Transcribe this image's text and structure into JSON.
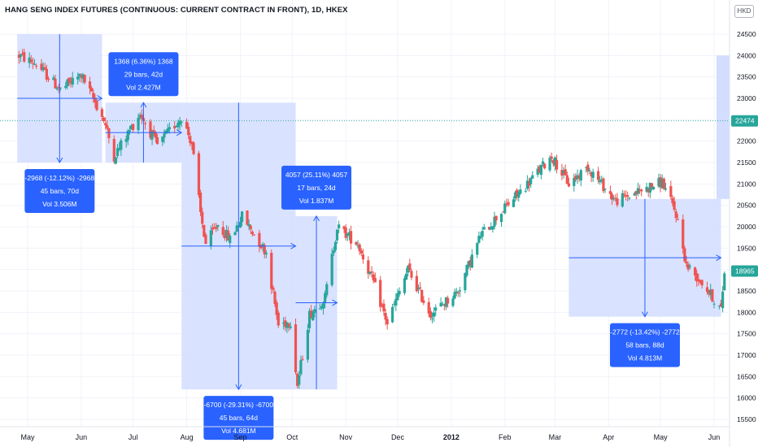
{
  "title": "HANG SENG INDEX FUTURES (CONTINUOUS: CURRENT CONTRACT IN FRONT), 1D, HKEX",
  "currency": "HKD",
  "colors": {
    "up": "#26a69a",
    "down": "#ef5350",
    "range": "#2962ff",
    "range_fill": "#d2ddff",
    "label_bg": "#2962ff",
    "price_line": "#26a69a"
  },
  "price_marks": [
    {
      "value": 22474,
      "label": "22474",
      "color": "#26a69a"
    },
    {
      "value": 18965,
      "label": "18965",
      "color": "#26a69a"
    }
  ],
  "chart_data": {
    "type": "candlestick",
    "title": "HANG SENG INDEX FUTURES (CONTINUOUS: CURRENT CONTRACT IN FRONT), 1D, HKEX",
    "x_tick_labels": [
      "May",
      "Jun",
      "Jul",
      "Aug",
      "Sep",
      "Oct",
      "Nov",
      "Dec",
      "2012",
      "Feb",
      "Mar",
      "Apr",
      "May",
      "Jun"
    ],
    "y_ticks": [
      15500,
      16000,
      16500,
      17000,
      17500,
      18000,
      18500,
      19000,
      19500,
      20000,
      20500,
      21000,
      21500,
      22000,
      22500,
      23000,
      23500,
      24000,
      24500
    ],
    "ylim": [
      15300,
      24850
    ],
    "anchors": [
      {
        "date": "2011-04-26",
        "price": 24000
      },
      {
        "date": "2011-05-06",
        "price": 23800
      },
      {
        "date": "2011-05-20",
        "price": 23200
      },
      {
        "date": "2011-06-01",
        "price": 23550
      },
      {
        "date": "2011-06-14",
        "price": 22500
      },
      {
        "date": "2011-06-20",
        "price": 21650
      },
      {
        "date": "2011-07-05",
        "price": 22650
      },
      {
        "date": "2011-07-15",
        "price": 21900
      },
      {
        "date": "2011-07-29",
        "price": 22570
      },
      {
        "date": "2011-08-04",
        "price": 21950
      },
      {
        "date": "2011-08-09",
        "price": 20300
      },
      {
        "date": "2011-08-12",
        "price": 19600
      },
      {
        "date": "2011-08-19",
        "price": 20050
      },
      {
        "date": "2011-08-26",
        "price": 19700
      },
      {
        "date": "2011-09-02",
        "price": 20250
      },
      {
        "date": "2011-09-16",
        "price": 19400
      },
      {
        "date": "2011-09-23",
        "price": 17700
      },
      {
        "date": "2011-09-30",
        "price": 17800
      },
      {
        "date": "2011-10-04",
        "price": 16300
      },
      {
        "date": "2011-10-11",
        "price": 17950
      },
      {
        "date": "2011-10-20",
        "price": 18350
      },
      {
        "date": "2011-10-27",
        "price": 20000
      },
      {
        "date": "2011-11-08",
        "price": 19600
      },
      {
        "date": "2011-11-17",
        "price": 18700
      },
      {
        "date": "2011-11-25",
        "price": 17750
      },
      {
        "date": "2011-12-07",
        "price": 19000
      },
      {
        "date": "2011-12-20",
        "price": 17950
      },
      {
        "date": "2012-01-05",
        "price": 18500
      },
      {
        "date": "2012-01-18",
        "price": 19800
      },
      {
        "date": "2012-01-31",
        "price": 20400
      },
      {
        "date": "2012-02-14",
        "price": 21000
      },
      {
        "date": "2012-02-28",
        "price": 21650
      },
      {
        "date": "2012-03-09",
        "price": 21000
      },
      {
        "date": "2012-03-20",
        "price": 21400
      },
      {
        "date": "2012-04-05",
        "price": 20600
      },
      {
        "date": "2012-04-20",
        "price": 20850
      },
      {
        "date": "2012-05-02",
        "price": 21050
      },
      {
        "date": "2012-05-10",
        "price": 20300
      },
      {
        "date": "2012-05-16",
        "price": 19100
      },
      {
        "date": "2012-05-25",
        "price": 18700
      },
      {
        "date": "2012-06-01",
        "price": 18300
      },
      {
        "date": "2012-06-05",
        "price": 18050
      },
      {
        "date": "2012-06-07",
        "price": 18965
      }
    ],
    "ranges": [
      {
        "start": "2011-04-25",
        "end": "2011-06-13",
        "from": 24500,
        "to": 21500,
        "label": [
          "-2968 (-12.12%) -2968",
          "45 bars, 70d",
          "Vol 3.506M"
        ],
        "label_pos": "below"
      },
      {
        "start": "2011-06-15",
        "end": "2011-07-29",
        "from": 21500,
        "to": 22900,
        "label": [
          "1368 (6.36%) 1368",
          "29 bars, 42d",
          "Vol 2.427M"
        ],
        "label_pos": "above"
      },
      {
        "start": "2011-07-29",
        "end": "2011-10-03",
        "from": 22900,
        "to": 16200,
        "label": [
          "-6700 (-29.31%) -6700",
          "45 bars, 64d",
          "Vol 4.681M"
        ],
        "label_pos": "below"
      },
      {
        "start": "2011-10-03",
        "end": "2011-10-27",
        "from": 16200,
        "to": 20250,
        "label": [
          "4057 (25.11%) 4057",
          "17 bars, 24d",
          "Vol 1.837M"
        ],
        "label_pos": "above"
      },
      {
        "start": "2012-03-09",
        "end": "2012-06-05",
        "from": 20650,
        "to": 17900,
        "label": [
          "-2772 (-13.42%) -2772",
          "58 bars, 88d",
          "Vol 4.813M"
        ],
        "label_pos": "below"
      }
    ],
    "axis_range_box": {
      "from": 20650,
      "to": 24000
    }
  }
}
